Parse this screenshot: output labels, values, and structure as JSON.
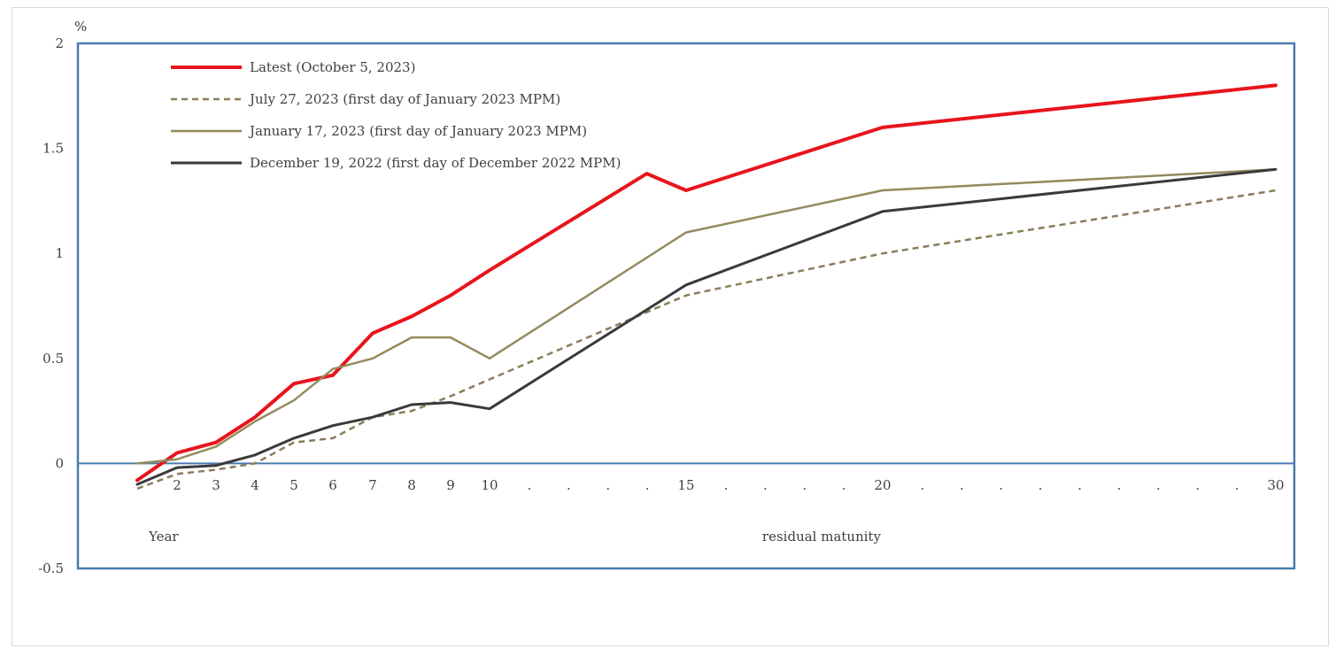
{
  "chart_data": {
    "type": "line",
    "unit_label": "%",
    "x_unit_label": "Year",
    "xlabel": "residual matunity",
    "ylim": [
      -0.5,
      2
    ],
    "yticks": [
      "2",
      "1.5",
      "1",
      "0.5",
      "0",
      "-0.5"
    ],
    "x_tick_labels": [
      "2",
      "3",
      "4",
      "5",
      "6",
      "7",
      "8",
      "9",
      "10",
      ".",
      ".",
      ".",
      ".",
      "15",
      ".",
      ".",
      ".",
      ".",
      "20",
      ".",
      ".",
      ".",
      ".",
      ".",
      ".",
      ".",
      ".",
      ".",
      "30"
    ],
    "x_positions": [
      1,
      2,
      3,
      4,
      5,
      6,
      7,
      8,
      9,
      10,
      15,
      20,
      30
    ],
    "colors": {
      "axis": "#4a7ab0",
      "text": "#404040"
    },
    "series": [
      {
        "name": "Latest (October 5, 2023)",
        "color": "#e8141c",
        "dash": "solid",
        "width": 4,
        "points": [
          [
            1,
            -0.08
          ],
          [
            2,
            0.05
          ],
          [
            3,
            0.1
          ],
          [
            4,
            0.22
          ],
          [
            5,
            0.38
          ],
          [
            6,
            0.42
          ],
          [
            7,
            0.62
          ],
          [
            8,
            0.7
          ],
          [
            9,
            0.8
          ],
          [
            10,
            0.92
          ],
          [
            14,
            1.38
          ],
          [
            15,
            1.3
          ],
          [
            20,
            1.6
          ],
          [
            30,
            1.8
          ]
        ]
      },
      {
        "name": "July 27, 2023 (first day of January 2023 MPM)",
        "color": "#8b7d5a",
        "dash": "dashed",
        "width": 2.5,
        "points": [
          [
            1,
            -0.12
          ],
          [
            2,
            -0.05
          ],
          [
            3,
            -0.03
          ],
          [
            4,
            0.0
          ],
          [
            5,
            0.1
          ],
          [
            6,
            0.12
          ],
          [
            7,
            0.22
          ],
          [
            8,
            0.25
          ],
          [
            9,
            0.32
          ],
          [
            10,
            0.4
          ],
          [
            15,
            0.8
          ],
          [
            20,
            1.0
          ],
          [
            30,
            1.3
          ]
        ]
      },
      {
        "name": "January 17, 2023 (first day of January 2023 MPM)",
        "color": "#948a5e",
        "dash": "solid",
        "width": 2.5,
        "points": [
          [
            1,
            0.0
          ],
          [
            2,
            0.02
          ],
          [
            3,
            0.08
          ],
          [
            4,
            0.2
          ],
          [
            5,
            0.3
          ],
          [
            6,
            0.45
          ],
          [
            7,
            0.5
          ],
          [
            8,
            0.6
          ],
          [
            9,
            0.6
          ],
          [
            10,
            0.5
          ],
          [
            15,
            1.1
          ],
          [
            20,
            1.3
          ],
          [
            30,
            1.4
          ]
        ]
      },
      {
        "name": "December 19, 2022 (first day of December 2022 MPM)",
        "color": "#3a3a3a",
        "dash": "solid",
        "width": 3,
        "points": [
          [
            1,
            -0.1
          ],
          [
            2,
            -0.02
          ],
          [
            3,
            -0.01
          ],
          [
            4,
            0.04
          ],
          [
            5,
            0.12
          ],
          [
            6,
            0.18
          ],
          [
            7,
            0.22
          ],
          [
            8,
            0.28
          ],
          [
            9,
            0.29
          ],
          [
            10,
            0.26
          ],
          [
            15,
            0.85
          ],
          [
            20,
            1.2
          ],
          [
            30,
            1.4
          ]
        ]
      }
    ]
  }
}
